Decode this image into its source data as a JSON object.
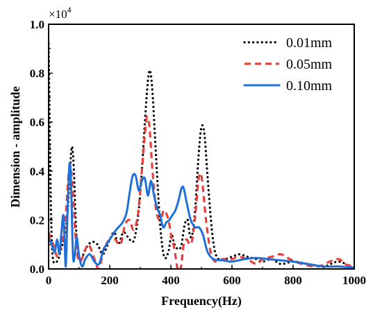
{
  "chart_data": {
    "type": "line",
    "xlabel": "Frequency(Hz)",
    "ylabel": "Dimension - amplitude",
    "xlim": [
      0,
      1000
    ],
    "ylim": [
      0,
      1.0
    ],
    "x_ticks": [
      "0",
      "200",
      "400",
      "600",
      "800",
      "1000"
    ],
    "y_ticks": [
      "0.0",
      "0.2",
      "0.4",
      "0.6",
      "0.8",
      "1.0"
    ],
    "y_multiplier": {
      "base": "×10",
      "exponent": "4"
    },
    "grid": false,
    "legend_position": "top-right",
    "series": [
      {
        "name": "0.01mm",
        "color": "#000000",
        "style": "dotted",
        "points": [
          [
            0,
            0.92
          ],
          [
            10,
            0.13
          ],
          [
            25,
            0.03
          ],
          [
            45,
            0.1
          ],
          [
            60,
            0.2
          ],
          [
            70,
            0.4
          ],
          [
            76,
            0.5
          ],
          [
            82,
            0.42
          ],
          [
            92,
            0.12
          ],
          [
            105,
            0.04
          ],
          [
            120,
            0.08
          ],
          [
            140,
            0.11
          ],
          [
            160,
            0.1
          ],
          [
            178,
            0.06
          ],
          [
            200,
            0.12
          ],
          [
            215,
            0.15
          ],
          [
            228,
            0.1
          ],
          [
            245,
            0.15
          ],
          [
            265,
            0.12
          ],
          [
            280,
            0.12
          ],
          [
            295,
            0.24
          ],
          [
            305,
            0.4
          ],
          [
            315,
            0.6
          ],
          [
            325,
            0.77
          ],
          [
            332,
            0.81
          ],
          [
            340,
            0.72
          ],
          [
            352,
            0.45
          ],
          [
            365,
            0.18
          ],
          [
            378,
            0.05
          ],
          [
            392,
            0.07
          ],
          [
            402,
            0.14
          ],
          [
            412,
            0.1
          ],
          [
            425,
            0.08
          ],
          [
            435,
            0.1
          ],
          [
            445,
            0.18
          ],
          [
            455,
            0.2
          ],
          [
            462,
            0.14
          ],
          [
            470,
            0.14
          ],
          [
            480,
            0.25
          ],
          [
            490,
            0.45
          ],
          [
            500,
            0.58
          ],
          [
            510,
            0.55
          ],
          [
            520,
            0.38
          ],
          [
            535,
            0.15
          ],
          [
            550,
            0.05
          ],
          [
            575,
            0.04
          ],
          [
            600,
            0.05
          ],
          [
            625,
            0.06
          ],
          [
            650,
            0.05
          ],
          [
            680,
            0.04
          ],
          [
            700,
            0.03
          ],
          [
            730,
            0.04
          ],
          [
            760,
            0.02
          ],
          [
            800,
            0.03
          ],
          [
            850,
            0.02
          ],
          [
            900,
            0.01
          ],
          [
            950,
            0.03
          ],
          [
            1000,
            0.0
          ]
        ]
      },
      {
        "name": "0.05mm",
        "color": "#e8413c",
        "style": "dashed",
        "points": [
          [
            0,
            0.15
          ],
          [
            15,
            0.1
          ],
          [
            30,
            0.05
          ],
          [
            45,
            0.12
          ],
          [
            55,
            0.2
          ],
          [
            65,
            0.38
          ],
          [
            72,
            0.42
          ],
          [
            80,
            0.3
          ],
          [
            90,
            0.1
          ],
          [
            100,
            0.03
          ],
          [
            112,
            0.05
          ],
          [
            130,
            0.1
          ],
          [
            150,
            0.04
          ],
          [
            165,
            0.0
          ],
          [
            180,
            0.08
          ],
          [
            200,
            0.12
          ],
          [
            218,
            0.12
          ],
          [
            235,
            0.1
          ],
          [
            250,
            0.18
          ],
          [
            265,
            0.2
          ],
          [
            278,
            0.16
          ],
          [
            292,
            0.22
          ],
          [
            305,
            0.4
          ],
          [
            315,
            0.55
          ],
          [
            322,
            0.62
          ],
          [
            330,
            0.58
          ],
          [
            340,
            0.4
          ],
          [
            352,
            0.24
          ],
          [
            365,
            0.2
          ],
          [
            378,
            0.24
          ],
          [
            392,
            0.2
          ],
          [
            402,
            0.13
          ],
          [
            412,
            0.08
          ],
          [
            422,
            0.0
          ],
          [
            432,
            0.0
          ],
          [
            442,
            0.1
          ],
          [
            452,
            0.12
          ],
          [
            462,
            0.1
          ],
          [
            470,
            0.12
          ],
          [
            480,
            0.22
          ],
          [
            490,
            0.36
          ],
          [
            498,
            0.39
          ],
          [
            505,
            0.33
          ],
          [
            515,
            0.2
          ],
          [
            530,
            0.07
          ],
          [
            545,
            0.03
          ],
          [
            570,
            0.04
          ],
          [
            600,
            0.04
          ],
          [
            620,
            0.05
          ],
          [
            650,
            0.04
          ],
          [
            680,
            0.02
          ],
          [
            700,
            0.04
          ],
          [
            730,
            0.05
          ],
          [
            760,
            0.06
          ],
          [
            790,
            0.04
          ],
          [
            830,
            0.02
          ],
          [
            880,
            0.01
          ],
          [
            920,
            0.03
          ],
          [
            950,
            0.04
          ],
          [
            970,
            0.02
          ],
          [
            1000,
            0.01
          ]
        ]
      },
      {
        "name": "0.10mm",
        "color": "#1f6fd8",
        "style": "solid",
        "points": [
          [
            0,
            0.13
          ],
          [
            10,
            0.1
          ],
          [
            20,
            0.07
          ],
          [
            28,
            0.12
          ],
          [
            35,
            0.06
          ],
          [
            42,
            0.15
          ],
          [
            48,
            0.22
          ],
          [
            52,
            0.12
          ],
          [
            56,
            0.01
          ],
          [
            60,
            0.15
          ],
          [
            66,
            0.38
          ],
          [
            70,
            0.43
          ],
          [
            74,
            0.32
          ],
          [
            80,
            0.05
          ],
          [
            86,
            0.06
          ],
          [
            92,
            0.13
          ],
          [
            100,
            0.05
          ],
          [
            110,
            0.01
          ],
          [
            120,
            0.04
          ],
          [
            135,
            0.06
          ],
          [
            150,
            0.03
          ],
          [
            165,
            0.02
          ],
          [
            180,
            0.08
          ],
          [
            200,
            0.12
          ],
          [
            215,
            0.15
          ],
          [
            228,
            0.17
          ],
          [
            242,
            0.19
          ],
          [
            255,
            0.23
          ],
          [
            265,
            0.31
          ],
          [
            275,
            0.38
          ],
          [
            285,
            0.38
          ],
          [
            295,
            0.32
          ],
          [
            305,
            0.36
          ],
          [
            315,
            0.37
          ],
          [
            325,
            0.3
          ],
          [
            335,
            0.36
          ],
          [
            345,
            0.3
          ],
          [
            355,
            0.25
          ],
          [
            365,
            0.22
          ],
          [
            375,
            0.17
          ],
          [
            385,
            0.19
          ],
          [
            395,
            0.2
          ],
          [
            405,
            0.22
          ],
          [
            415,
            0.24
          ],
          [
            425,
            0.28
          ],
          [
            435,
            0.33
          ],
          [
            442,
            0.33
          ],
          [
            452,
            0.27
          ],
          [
            465,
            0.2
          ],
          [
            480,
            0.17
          ],
          [
            492,
            0.17
          ],
          [
            505,
            0.14
          ],
          [
            520,
            0.07
          ],
          [
            540,
            0.04
          ],
          [
            570,
            0.035
          ],
          [
            600,
            0.03
          ],
          [
            640,
            0.04
          ],
          [
            680,
            0.045
          ],
          [
            720,
            0.04
          ],
          [
            760,
            0.035
          ],
          [
            800,
            0.03
          ],
          [
            850,
            0.02
          ],
          [
            900,
            0.01
          ],
          [
            950,
            0.01
          ],
          [
            1000,
            0.005
          ]
        ]
      }
    ]
  }
}
